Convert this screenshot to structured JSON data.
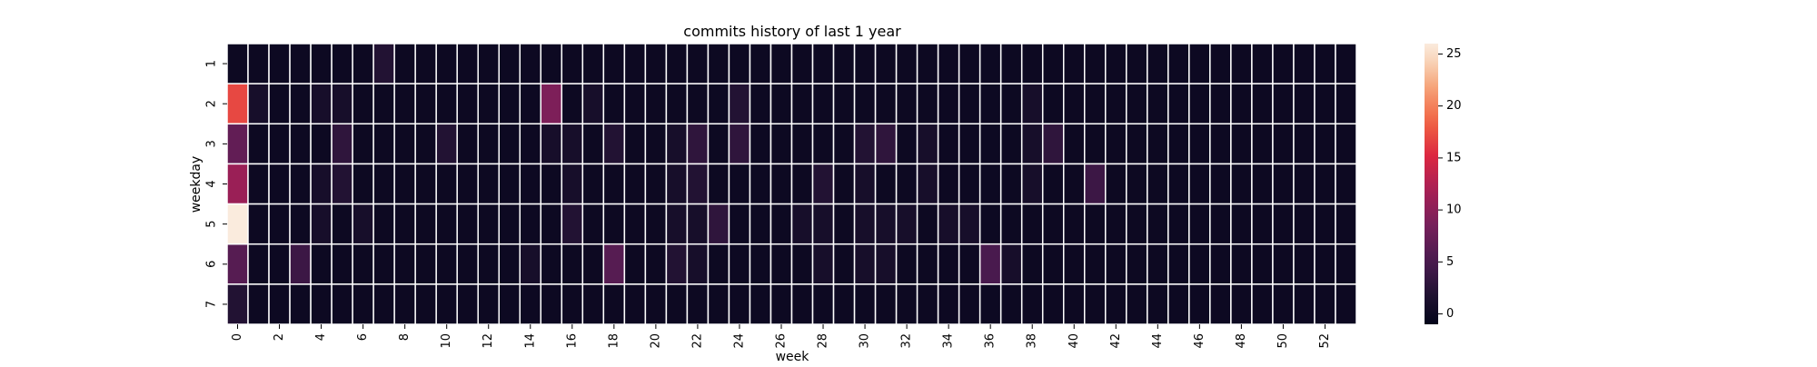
{
  "chart_data": {
    "type": "heatmap",
    "title": "commits history of last 1 year",
    "xlabel": "week",
    "ylabel": "weekday",
    "rows": [
      "1",
      "2",
      "3",
      "4",
      "5",
      "6",
      "7"
    ],
    "columns": [
      "0",
      "1",
      "2",
      "3",
      "4",
      "5",
      "6",
      "7",
      "8",
      "9",
      "10",
      "11",
      "12",
      "13",
      "14",
      "15",
      "16",
      "17",
      "18",
      "19",
      "20",
      "21",
      "22",
      "23",
      "24",
      "25",
      "26",
      "27",
      "28",
      "29",
      "30",
      "31",
      "32",
      "33",
      "34",
      "35",
      "36",
      "37",
      "38",
      "39",
      "40",
      "41",
      "42",
      "43",
      "44",
      "45",
      "46",
      "47",
      "48",
      "49",
      "50",
      "51",
      "52",
      "53"
    ],
    "x_tick_labels": [
      "0",
      "2",
      "4",
      "6",
      "8",
      "10",
      "12",
      "14",
      "16",
      "18",
      "20",
      "22",
      "24",
      "26",
      "28",
      "30",
      "32",
      "34",
      "36",
      "38",
      "40",
      "42",
      "44",
      "46",
      "48",
      "50",
      "52"
    ],
    "values": [
      [
        0,
        0,
        0,
        0,
        0,
        0,
        0,
        2,
        0,
        0,
        0,
        0,
        0,
        0,
        0,
        0,
        0,
        0,
        0,
        0,
        0,
        0,
        0,
        0,
        0,
        0,
        0,
        0,
        0,
        0,
        0,
        0,
        0,
        0,
        0,
        0,
        0,
        0,
        0,
        0,
        0,
        0,
        0,
        0,
        0,
        0,
        0,
        0,
        0,
        0,
        0,
        0,
        0,
        0
      ],
      [
        17,
        1,
        0,
        0,
        1,
        1,
        0,
        0,
        0,
        0,
        0,
        0,
        0,
        0,
        0,
        9,
        0,
        1,
        0,
        0,
        0,
        0,
        0,
        0,
        2,
        0,
        0,
        0,
        0,
        0,
        0,
        0,
        0,
        0,
        0,
        0,
        0,
        0,
        1,
        0,
        0,
        0,
        0,
        0,
        0,
        0,
        0,
        0,
        0,
        0,
        0,
        0,
        0,
        0
      ],
      [
        7,
        0,
        0,
        0,
        0,
        3,
        0,
        0,
        0,
        0,
        2,
        0,
        0,
        0,
        0,
        1,
        1,
        0,
        2,
        0,
        0,
        1,
        3,
        0,
        3,
        0,
        0,
        0,
        0,
        0,
        2,
        3,
        0,
        1,
        0,
        0,
        0,
        0,
        1,
        3,
        0,
        0,
        0,
        0,
        0,
        0,
        0,
        0,
        0,
        0,
        0,
        0,
        0,
        0
      ],
      [
        11,
        0,
        0,
        0,
        1,
        2,
        0,
        0,
        0,
        0,
        0,
        0,
        0,
        0,
        0,
        0,
        1,
        0,
        0,
        0,
        0,
        1,
        2,
        0,
        0,
        0,
        0,
        0,
        2,
        0,
        1,
        0,
        0,
        1,
        0,
        0,
        0,
        0,
        1,
        0,
        0,
        4,
        0,
        0,
        0,
        0,
        0,
        0,
        0,
        0,
        0,
        0,
        0,
        0
      ],
      [
        26,
        0,
        0,
        0,
        1,
        0,
        1,
        0,
        0,
        0,
        0,
        0,
        0,
        0,
        0,
        0,
        2,
        0,
        0,
        0,
        0,
        1,
        1,
        3,
        0,
        0,
        0,
        1,
        1,
        0,
        1,
        1,
        1,
        0,
        1,
        1,
        0,
        0,
        0,
        0,
        0,
        0,
        0,
        0,
        0,
        0,
        0,
        0,
        0,
        0,
        0,
        0,
        0,
        0
      ],
      [
        6,
        0,
        0,
        4,
        0,
        0,
        0,
        0,
        0,
        0,
        0,
        0,
        0,
        0,
        1,
        0,
        0,
        0,
        6,
        0,
        0,
        2,
        1,
        0,
        0,
        0,
        0,
        0,
        1,
        0,
        1,
        1,
        0,
        0,
        0,
        0,
        5,
        1,
        0,
        0,
        0,
        0,
        0,
        0,
        0,
        0,
        0,
        0,
        0,
        0,
        0,
        0,
        0,
        0
      ],
      [
        2,
        0,
        0,
        0,
        0,
        0,
        0,
        0,
        0,
        0,
        0,
        0,
        0,
        0,
        0,
        0,
        0,
        0,
        0,
        0,
        0,
        0,
        0,
        0,
        0,
        0,
        0,
        0,
        0,
        0,
        0,
        0,
        0,
        0,
        0,
        0,
        0,
        0,
        0,
        0,
        0,
        0,
        0,
        0,
        0,
        0,
        0,
        0,
        0,
        0,
        0,
        0,
        0,
        0
      ]
    ],
    "colorbar": {
      "colormap": "rocket",
      "range": [
        -1,
        26
      ],
      "ticks": [
        0,
        5,
        10,
        15,
        20,
        25
      ]
    },
    "cell_border_color": "#ffffff",
    "grid": false
  }
}
